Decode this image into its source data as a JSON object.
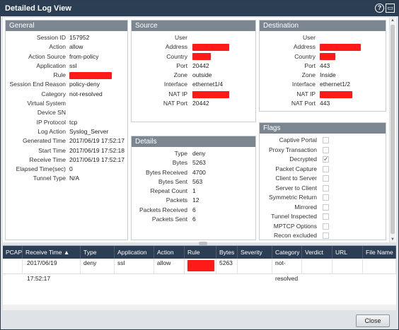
{
  "window": {
    "title": "Detailed Log View",
    "help_glyph": "?",
    "max_glyph": "▭"
  },
  "general": {
    "title": "General",
    "rows": [
      {
        "label": "Session ID",
        "value": "157952"
      },
      {
        "label": "Action",
        "value": "allow"
      },
      {
        "label": "Action Source",
        "value": "from-policy"
      },
      {
        "label": "Application",
        "value": "ssl"
      },
      {
        "label": "Rule",
        "value": ""
      },
      {
        "label": "Session End Reason",
        "value": "policy-deny"
      },
      {
        "label": "Category",
        "value": "not-resolved"
      },
      {
        "label": "Virtual System",
        "value": ""
      },
      {
        "label": "Device SN",
        "value": ""
      },
      {
        "label": "IP Protocol",
        "value": "tcp"
      },
      {
        "label": "Log Action",
        "value": "Syslog_Server"
      },
      {
        "label": "Generated Time",
        "value": "2017/06/19 17:52:17"
      },
      {
        "label": "Start Time",
        "value": "2017/06/19 17:52:18"
      },
      {
        "label": "Receive Time",
        "value": "2017/06/19 17:52:17"
      },
      {
        "label": "Elapsed Time(sec)",
        "value": "0"
      },
      {
        "label": "Tunnel Type",
        "value": "N/A"
      }
    ]
  },
  "source": {
    "title": "Source",
    "rows": [
      {
        "label": "User",
        "value": ""
      },
      {
        "label": "Address",
        "value": ""
      },
      {
        "label": "Country",
        "value": ""
      },
      {
        "label": "Port",
        "value": "20442"
      },
      {
        "label": "Zone",
        "value": "outside"
      },
      {
        "label": "Interface",
        "value": "ethernet1/4"
      },
      {
        "label": "NAT IP",
        "value": ""
      },
      {
        "label": "NAT Port",
        "value": "20442"
      }
    ]
  },
  "destination": {
    "title": "Destination",
    "rows": [
      {
        "label": "User",
        "value": ""
      },
      {
        "label": "Address",
        "value": ""
      },
      {
        "label": "Country",
        "value": ""
      },
      {
        "label": "Port",
        "value": "443"
      },
      {
        "label": "Zone",
        "value": "Inside"
      },
      {
        "label": "Interface",
        "value": "ethernet1/2"
      },
      {
        "label": "NAT IP",
        "value": ""
      },
      {
        "label": "NAT Port",
        "value": "443"
      }
    ]
  },
  "details": {
    "title": "Details",
    "rows": [
      {
        "label": "Type",
        "value": "deny"
      },
      {
        "label": "Bytes",
        "value": "5263"
      },
      {
        "label": "Bytes Received",
        "value": "4700"
      },
      {
        "label": "Bytes Sent",
        "value": "563"
      },
      {
        "label": "Repeat Count",
        "value": "1"
      },
      {
        "label": "Packets",
        "value": "12"
      },
      {
        "label": "Packets Received",
        "value": "6"
      },
      {
        "label": "Packets Sent",
        "value": "6"
      }
    ]
  },
  "flags": {
    "title": "Flags",
    "items": [
      {
        "label": "Captive Portal",
        "checked": false
      },
      {
        "label": "Proxy Transaction",
        "checked": false
      },
      {
        "label": "Decrypted",
        "checked": true
      },
      {
        "label": "Packet Capture",
        "checked": false
      },
      {
        "label": "Client to Server",
        "checked": false
      },
      {
        "label": "Server to Client",
        "checked": false
      },
      {
        "label": "Symmetric Return",
        "checked": false
      },
      {
        "label": "Mirrored",
        "checked": false
      },
      {
        "label": "Tunnel Inspected",
        "checked": false
      },
      {
        "label": "MPTCP Options",
        "checked": false
      },
      {
        "label": "Recon excluded",
        "checked": false
      }
    ]
  },
  "table": {
    "columns": [
      "PCAP",
      "Receive Time ▲",
      "Type",
      "Application",
      "Action",
      "Rule",
      "Bytes",
      "Severity",
      "Category",
      "Verdict",
      "URL",
      "File Name"
    ],
    "row": {
      "pcap": "",
      "receive_time_1": "2017/06/19",
      "receive_time_2": "17:52:17",
      "type": "deny",
      "application": "ssl",
      "action": "allow",
      "rule": "",
      "bytes": "5263",
      "severity": "",
      "category_1": "not-",
      "category_2": "resolved",
      "verdict": "",
      "url": "",
      "file_name": ""
    }
  },
  "footer": {
    "close_label": "Close"
  }
}
